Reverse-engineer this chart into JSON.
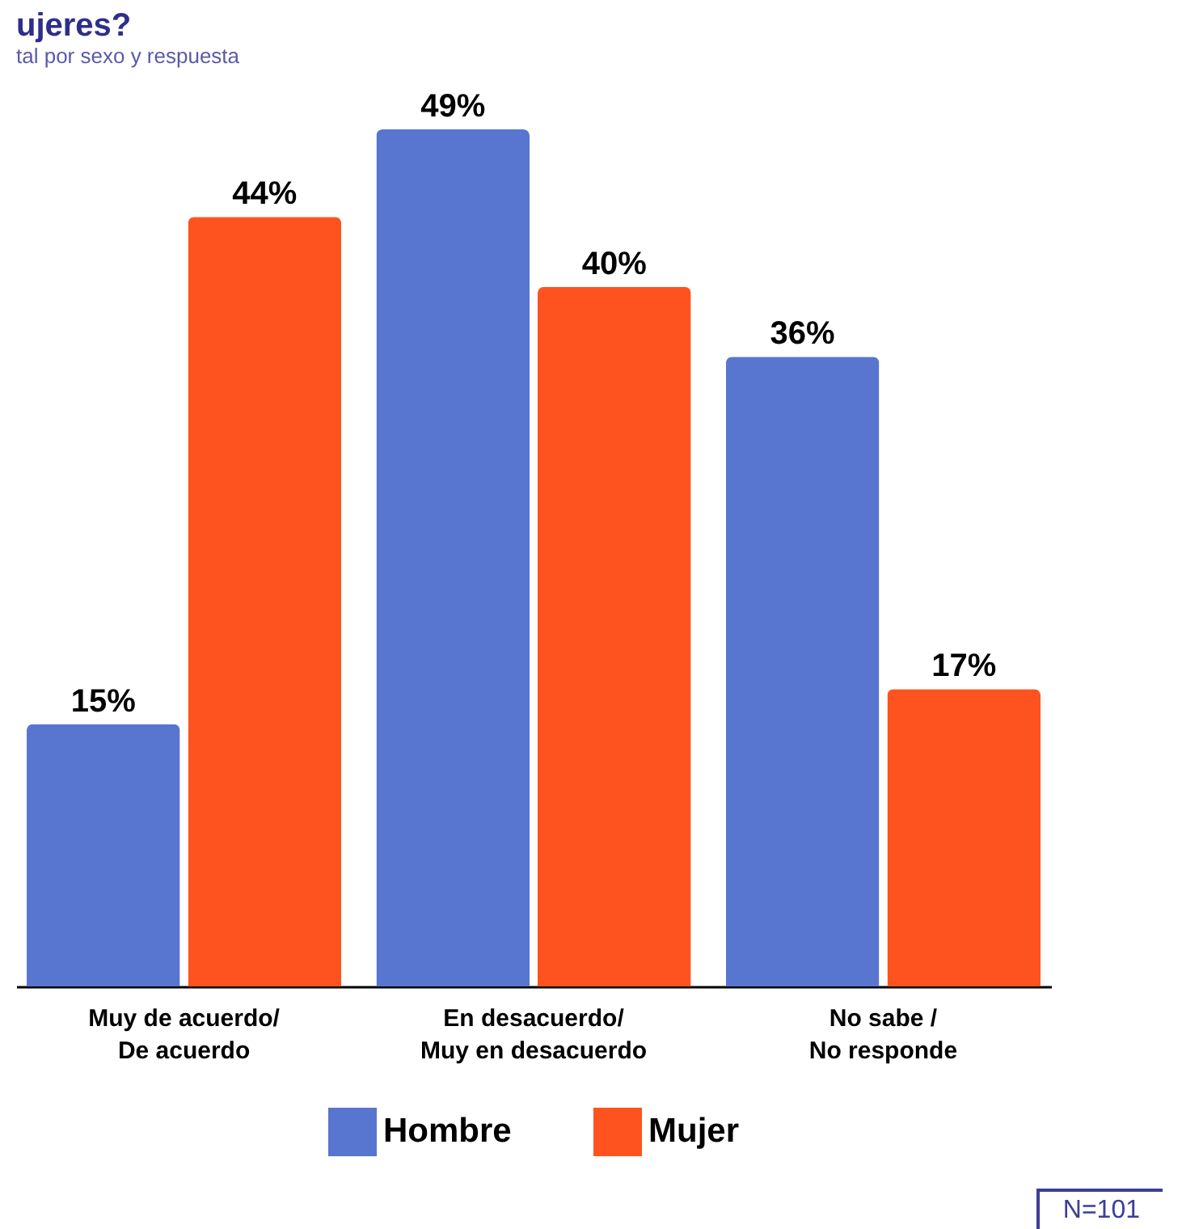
{
  "chart_data": {
    "type": "bar",
    "title": "ujeres?",
    "subtitle": "tal por sexo y respuesta",
    "categories": [
      "Muy de acuerdo/\nDe acuerdo",
      "En desacuerdo/\nMuy en desacuerdo",
      "No sabe /\nNo responde"
    ],
    "series": [
      {
        "name": "Hombre",
        "color": "#5875d0",
        "values": [
          15,
          49,
          36
        ],
        "value_labels": [
          "15%",
          "49%",
          "36%"
        ]
      },
      {
        "name": "Mujer",
        "color": "#ff531f",
        "values": [
          44,
          40,
          17
        ],
        "value_labels": [
          "44%",
          "40%",
          "17%"
        ]
      }
    ],
    "legend": "bottom",
    "annotations": [
      "N=101"
    ]
  }
}
